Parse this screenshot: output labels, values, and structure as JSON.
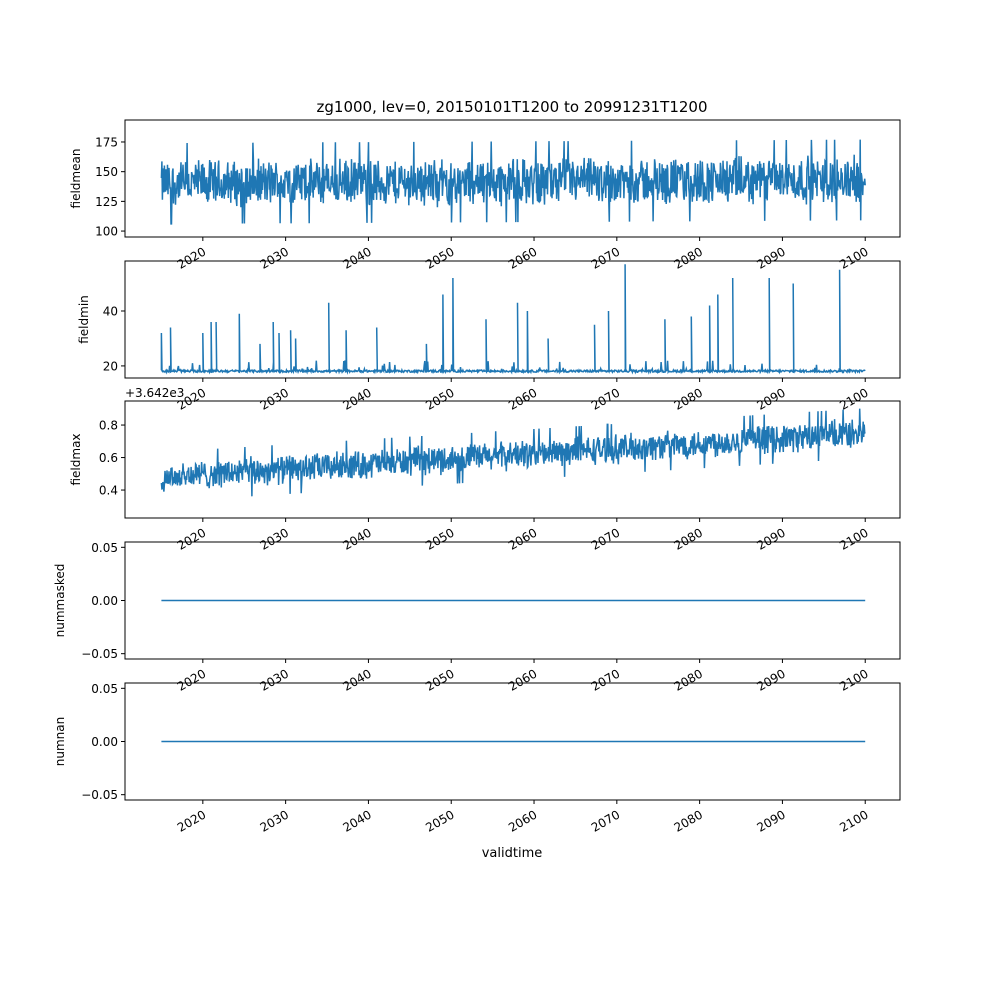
{
  "chart_data": {
    "type": "line",
    "title": "zg1000, lev=0, 20150101T1200 to 20991231T1200",
    "xlabel": "validtime",
    "x_range": [
      2015.0,
      2100.0
    ],
    "xlim": [
      2010.6,
      2104.2
    ],
    "x_ticks": [
      "2020",
      "2030",
      "2040",
      "2050",
      "2060",
      "2070",
      "2080",
      "2090",
      "2100"
    ],
    "line_color": "#1f77b4",
    "panels": [
      {
        "name": "fieldmean",
        "ylabel": "fieldmean",
        "ylim": [
          95,
          193.5
        ],
        "y_ticks": [
          100,
          125,
          150,
          175
        ],
        "y_tick_labels": [
          "100",
          "125",
          "150",
          "175"
        ],
        "series": {
          "kind": "noisy",
          "mean_start": 140,
          "mean_end": 143,
          "amplitude": 20,
          "max_observed": 188,
          "min_observed": 98
        }
      },
      {
        "name": "fieldmin",
        "ylabel": "fieldmin",
        "ylim": [
          15.6,
          58.2
        ],
        "y_ticks": [
          20,
          40
        ],
        "y_tick_labels": [
          "20",
          "40"
        ],
        "series": {
          "kind": "baseline_spikes",
          "baseline": 18,
          "spikes": [
            [
              2015.0,
              32
            ],
            [
              2016.1,
              34
            ],
            [
              2020.0,
              32
            ],
            [
              2021.0,
              36
            ],
            [
              2021.6,
              36
            ],
            [
              2024.4,
              39
            ],
            [
              2026.9,
              28
            ],
            [
              2028.5,
              36
            ],
            [
              2029.2,
              32
            ],
            [
              2030.6,
              33
            ],
            [
              2031.2,
              30
            ],
            [
              2035.2,
              43
            ],
            [
              2037.3,
              33
            ],
            [
              2041.0,
              34
            ],
            [
              2047.0,
              28
            ],
            [
              2049.0,
              46
            ],
            [
              2050.2,
              52
            ],
            [
              2054.2,
              37
            ],
            [
              2058.0,
              43
            ],
            [
              2059.2,
              40
            ],
            [
              2061.7,
              30
            ],
            [
              2067.3,
              35
            ],
            [
              2069.0,
              40
            ],
            [
              2071.0,
              57
            ],
            [
              2075.8,
              37
            ],
            [
              2079.0,
              38
            ],
            [
              2081.2,
              42
            ],
            [
              2082.2,
              46
            ],
            [
              2084.0,
              52
            ],
            [
              2088.4,
              52
            ],
            [
              2091.3,
              50
            ],
            [
              2096.9,
              55
            ]
          ]
        }
      },
      {
        "name": "fieldmax",
        "ylabel": "fieldmax",
        "offset_label": "+3.642e3",
        "ylim": [
          0.228,
          0.948
        ],
        "y_ticks": [
          0.4,
          0.6,
          0.8
        ],
        "y_tick_labels": [
          "0.4",
          "0.6",
          "0.8"
        ],
        "series": {
          "kind": "noisy",
          "mean_start": 0.48,
          "mean_end": 0.75,
          "amplitude": 0.09,
          "max_observed": 0.91,
          "min_observed": 0.26
        }
      },
      {
        "name": "nummasked",
        "ylabel": "nummasked",
        "ylim": [
          -0.055,
          0.055
        ],
        "y_ticks": [
          -0.05,
          0.0,
          0.05
        ],
        "y_tick_labels": [
          "−0.05",
          "0.00",
          "0.05"
        ],
        "series": {
          "kind": "constant",
          "value": 0
        }
      },
      {
        "name": "numnan",
        "ylabel": "numnan",
        "ylim": [
          -0.055,
          0.055
        ],
        "y_ticks": [
          -0.05,
          0.0,
          0.05
        ],
        "y_tick_labels": [
          "−0.05",
          "0.00",
          "0.05"
        ],
        "series": {
          "kind": "constant",
          "value": 0
        }
      }
    ]
  }
}
